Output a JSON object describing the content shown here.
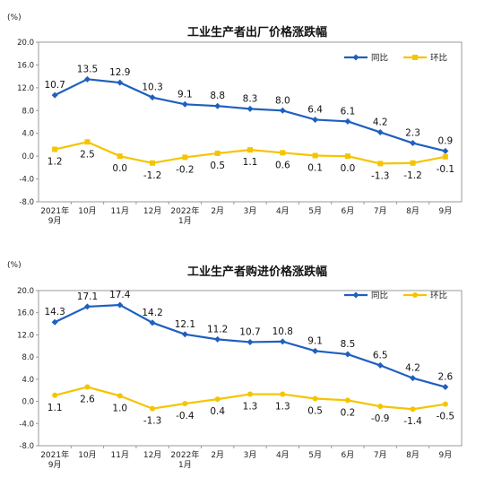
{
  "chart_data": [
    {
      "type": "line",
      "title": "工业生产者出厂价格涨跌幅",
      "unit": "(%)",
      "categories": [
        "2021年\n9月",
        "10月",
        "11月",
        "12月",
        "2022年\n1月",
        "2月",
        "3月",
        "4月",
        "5月",
        "6月",
        "7月",
        "8月",
        "9月"
      ],
      "series": [
        {
          "name": "同比",
          "color": "#1f5fbf",
          "marker": "diamond",
          "values": [
            10.7,
            13.5,
            12.9,
            10.3,
            9.1,
            8.8,
            8.3,
            8.0,
            6.4,
            6.1,
            4.2,
            2.3,
            0.9
          ]
        },
        {
          "name": "环比",
          "color": "#f5c400",
          "marker": "square",
          "values": [
            1.2,
            2.5,
            0.0,
            -1.2,
            -0.2,
            0.5,
            1.1,
            0.6,
            0.1,
            0.0,
            -1.3,
            -1.2,
            -0.1
          ]
        }
      ],
      "ylim": [
        -8.0,
        20.0
      ],
      "yticks": [
        "-8.0",
        "-4.0",
        "0.0",
        "4.0",
        "8.0",
        "12.0",
        "16.0",
        "20.0"
      ],
      "legend_position": "top-right",
      "grid": false
    },
    {
      "type": "line",
      "title": "工业生产者购进价格涨跌幅",
      "unit": "(%)",
      "categories": [
        "2021年\n9月",
        "10月",
        "11月",
        "12月",
        "2022年\n1月",
        "2月",
        "3月",
        "4月",
        "5月",
        "6月",
        "7月",
        "8月",
        "9月"
      ],
      "series": [
        {
          "name": "同比",
          "color": "#1f5fbf",
          "marker": "diamond",
          "values": [
            14.3,
            17.1,
            17.4,
            14.2,
            12.1,
            11.2,
            10.7,
            10.8,
            9.1,
            8.5,
            6.5,
            4.2,
            2.6
          ]
        },
        {
          "name": "环比",
          "color": "#f5c400",
          "marker": "circle",
          "values": [
            1.1,
            2.6,
            1.0,
            -1.3,
            -0.4,
            0.4,
            1.3,
            1.3,
            0.5,
            0.2,
            -0.9,
            -1.4,
            -0.5
          ]
        }
      ],
      "ylim": [
        -8.0,
        20.0
      ],
      "yticks": [
        "-8.0",
        "-4.0",
        "0.0",
        "4.0",
        "8.0",
        "12.0",
        "16.0",
        "20.0"
      ],
      "legend_position": "top-right",
      "grid": false
    }
  ]
}
